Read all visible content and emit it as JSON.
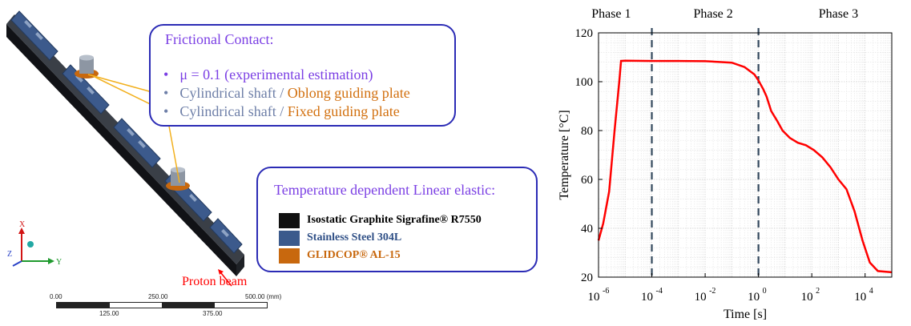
{
  "model": {
    "axes": {
      "x_label": "X",
      "y_label": "Y",
      "z_label": "Z"
    },
    "beam_label": "Proton beam",
    "scale_bar": {
      "labels_top": [
        "0.00",
        "250.00",
        "500.00 (mm)"
      ],
      "labels_bottom": [
        "125.00",
        "375.00"
      ]
    }
  },
  "contact_box": {
    "title": "Frictional Contact:",
    "bullets": [
      {
        "parts": [
          "μ = 0.1 (experimental estimation)"
        ],
        "colors": [
          "#7b3fe4"
        ],
        "bullet_color": "#7b3fe4"
      },
      {
        "parts": [
          "Cylindrical shaft / ",
          "Oblong guiding plate"
        ],
        "colors": [
          "#6e7fa8",
          "#d2700f"
        ],
        "bullet_color": "#6e7fa8"
      },
      {
        "parts": [
          "Cylindrical shaft / ",
          "Fixed guiding plate"
        ],
        "colors": [
          "#6e7fa8",
          "#d2700f"
        ],
        "bullet_color": "#6e7fa8"
      }
    ]
  },
  "materials_box": {
    "title": "Temperature dependent Linear elastic:",
    "items": [
      {
        "label": "Isostatic Graphite Sigrafine® R7550",
        "color": "#111111",
        "text_color": "#000000"
      },
      {
        "label": "Stainless Steel 304L",
        "color": "#3b5a8c",
        "text_color": "#2f4f86"
      },
      {
        "label": "GLIDCOP® AL-15",
        "color": "#c8680e",
        "text_color": "#c8680e"
      }
    ]
  },
  "chart_data": {
    "type": "line",
    "title": "",
    "xlabel": "Time [s]",
    "ylabel": "Temperature [°C]",
    "x_scale": "log",
    "xlim": [
      1e-06,
      100000.0
    ],
    "ylim": [
      20,
      120
    ],
    "x_ticks": [
      1e-06,
      0.0001,
      0.01,
      1,
      100,
      10000
    ],
    "x_tick_labels": [
      {
        "base": "10",
        "exp": "-6"
      },
      {
        "base": "10",
        "exp": "-4"
      },
      {
        "base": "10",
        "exp": "-2"
      },
      {
        "base": "10",
        "exp": "0"
      },
      {
        "base": "10",
        "exp": "2"
      },
      {
        "base": "10",
        "exp": "4"
      }
    ],
    "y_ticks": [
      20,
      40,
      60,
      80,
      100,
      120
    ],
    "grid": true,
    "series": [
      {
        "color": "#ff0000",
        "points": [
          [
            1e-06,
            35
          ],
          [
            1.5e-06,
            42
          ],
          [
            2.5e-06,
            55
          ],
          [
            4e-06,
            80
          ],
          [
            6e-06,
            100
          ],
          [
            7e-06,
            108.5
          ],
          [
            1e-05,
            108.6
          ],
          [
            0.0001,
            108.5
          ],
          [
            0.001,
            108.5
          ],
          [
            0.01,
            108.4
          ],
          [
            0.1,
            107.8
          ],
          [
            0.3,
            106
          ],
          [
            0.7,
            103
          ],
          [
            1,
            100.5
          ],
          [
            1.5,
            97
          ],
          [
            2,
            94
          ],
          [
            3,
            88
          ],
          [
            5,
            84
          ],
          [
            8,
            80
          ],
          [
            15,
            77
          ],
          [
            30,
            75
          ],
          [
            60,
            74
          ],
          [
            120,
            72
          ],
          [
            250,
            69
          ],
          [
            500,
            65
          ],
          [
            1000,
            60
          ],
          [
            2000,
            56
          ],
          [
            4000,
            47
          ],
          [
            8000,
            35
          ],
          [
            15000,
            26
          ],
          [
            30000,
            22.5
          ],
          [
            100000,
            22
          ]
        ]
      }
    ],
    "phases": {
      "boundaries": [
        0.0001,
        1
      ],
      "labels": [
        "Phase 1",
        "Phase 2",
        "Phase 3"
      ],
      "label_x": [
        3e-06,
        0.02,
        1000
      ]
    }
  }
}
